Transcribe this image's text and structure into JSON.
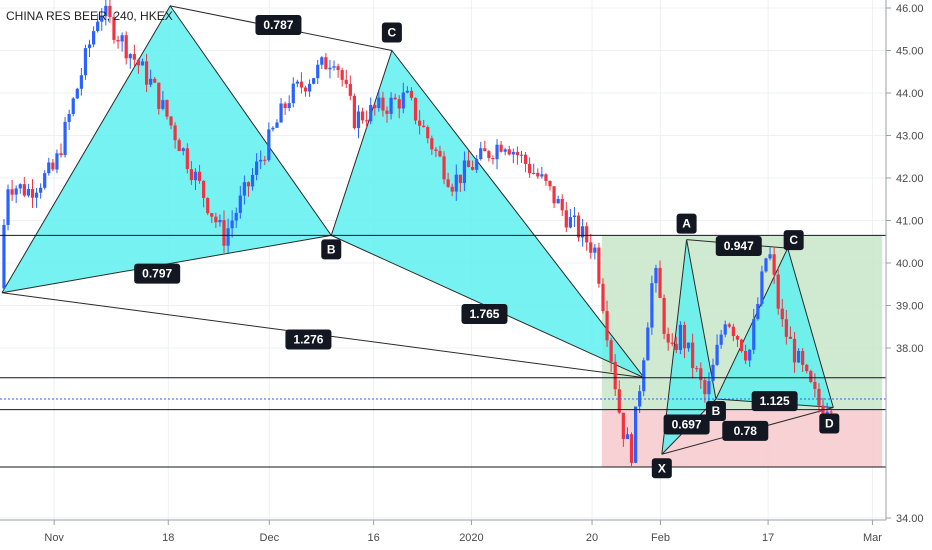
{
  "title": "CHINA RES BEER, 240, HKEX",
  "colors": {
    "up": "#2962ff",
    "down": "#ef3340",
    "pattern_fill": "#5ff0f0",
    "pattern_stroke": "#2a2a2a",
    "profit_zone": "#c8e6c9",
    "loss_zone": "#f7c9cc",
    "label_bg": "#131722",
    "current_price_line": "#2962ff"
  },
  "chart_data": {
    "type": "candlestick",
    "title": "CHINA RES BEER, 240, HKEX",
    "ylim": [
      33.7,
      46.15
    ],
    "y_ticks": [
      "34.00",
      "38.00",
      "39.00",
      "40.00",
      "41.00",
      "42.00",
      "43.00",
      "44.00",
      "45.00",
      "46.00"
    ],
    "x_ticks": [
      "Nov",
      "18",
      "Dec",
      "16",
      "2020",
      "20",
      "Feb",
      "17",
      "Mar"
    ],
    "price_path": [
      [
        0,
        39.4
      ],
      [
        0.05,
        41.9
      ],
      [
        0.4,
        41.7
      ],
      [
        0.8,
        42.2
      ],
      [
        1.5,
        46.0
      ],
      [
        2.3,
        44.2
      ],
      [
        3.4,
        40.6
      ],
      [
        3.8,
        41.9
      ],
      [
        4.4,
        43.9
      ],
      [
        5.1,
        44.9
      ],
      [
        5.4,
        43.4
      ],
      [
        6.2,
        43.9
      ],
      [
        6.9,
        41.9
      ],
      [
        7.7,
        42.9
      ],
      [
        8.3,
        41.9
      ],
      [
        8.7,
        41.0
      ],
      [
        9.1,
        40.3
      ],
      [
        9.5,
        36.2
      ],
      [
        9.65,
        35.5
      ],
      [
        10.0,
        39.9
      ],
      [
        10.25,
        37.7
      ],
      [
        10.4,
        38.4
      ],
      [
        10.8,
        36.8
      ],
      [
        11.1,
        38.8
      ],
      [
        11.45,
        37.8
      ],
      [
        11.75,
        40.4
      ],
      [
        11.95,
        38.6
      ],
      [
        12.35,
        37.2
      ],
      [
        12.55,
        36.6
      ],
      [
        12.75,
        36.8
      ]
    ],
    "price_lines": [
      {
        "label": "40.65",
        "value": 40.65,
        "tag": "green"
      },
      {
        "label": "37.30",
        "value": 37.3,
        "tag": "black"
      },
      {
        "label": "36.80",
        "value": 36.8,
        "tag": "blue",
        "dotted": true
      },
      {
        "label": "36.55",
        "value": 36.55,
        "tag": "black"
      },
      {
        "label": "36.50",
        "value": 36.5,
        "tag": "gray",
        "no_line": true
      },
      {
        "label": "35.20",
        "value": 35.2,
        "tag": "black"
      },
      {
        "label": "35.20",
        "value": 35.2,
        "tag": "red",
        "no_line": true,
        "offset": 18
      }
    ],
    "zones": [
      {
        "name": "profit",
        "x": [
          9.2,
          13.5
        ],
        "y": [
          36.55,
          40.65
        ]
      },
      {
        "name": "loss",
        "x": [
          9.2,
          13.5
        ],
        "y": [
          35.2,
          36.55
        ]
      }
    ],
    "patterns": [
      {
        "name": "pattern-1",
        "points": {
          "X": [
            0,
            39.3
          ],
          "A": [
            2.58,
            46.05
          ],
          "B": [
            5.05,
            40.65
          ],
          "C": [
            5.98,
            45.0
          ],
          "D": [
            9.85,
            37.3
          ]
        },
        "point_labels": [
          {
            "text": "B",
            "at": "B",
            "dx": 0,
            "dy": 14
          },
          {
            "text": "C",
            "at": "C",
            "dx": 0,
            "dy": -18
          }
        ],
        "ratio_labels": [
          {
            "text": "0.787",
            "x": 4.24,
            "y": 45.6
          },
          {
            "text": "0.797",
            "x": 2.38,
            "y": 39.75
          },
          {
            "text": "1.765",
            "x": 7.4,
            "y": 38.8
          },
          {
            "text": "1.276",
            "x": 4.7,
            "y": 38.2
          }
        ]
      },
      {
        "name": "pattern-2",
        "points": {
          "X": [
            10.12,
            35.5
          ],
          "A": [
            10.5,
            40.55
          ],
          "B": [
            10.95,
            36.8
          ],
          "C": [
            12.05,
            40.35
          ],
          "D": [
            12.75,
            36.6
          ]
        },
        "point_labels": [
          {
            "text": "X",
            "at": "X",
            "dx": 0,
            "dy": 14
          },
          {
            "text": "A",
            "at": "A",
            "dx": 0,
            "dy": -16
          },
          {
            "text": "B",
            "at": "B",
            "dx": 0,
            "dy": 12
          },
          {
            "text": "C",
            "at": "C",
            "dx": 6,
            "dy": -8
          },
          {
            "text": "D",
            "at": "D",
            "dx": -4,
            "dy": 16
          }
        ],
        "ratio_labels": [
          {
            "text": "0.947",
            "x": 11.3,
            "y": 40.4
          },
          {
            "text": "1.125",
            "x": 11.85,
            "y": 36.75
          },
          {
            "text": "0.697",
            "x": 10.5,
            "y": 36.2
          },
          {
            "text": "0.78",
            "x": 11.4,
            "y": 36.05
          }
        ]
      }
    ]
  }
}
